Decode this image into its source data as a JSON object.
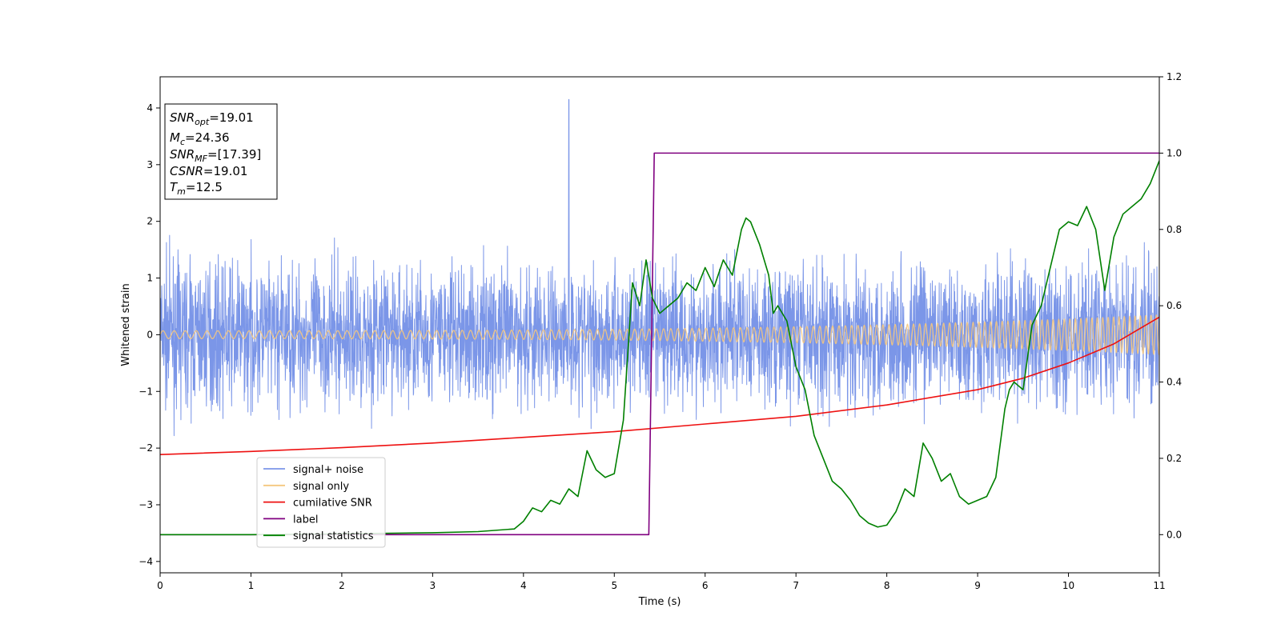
{
  "chart_data": {
    "type": "line",
    "xlabel": "Time (s)",
    "ylabel": "Whitened strain",
    "xlim": [
      0,
      11
    ],
    "ylim": [
      -4.2,
      4.55
    ],
    "y2lim": [
      -0.1,
      1.2
    ],
    "x_ticks": [
      0,
      1,
      2,
      3,
      4,
      5,
      6,
      7,
      8,
      9,
      10,
      11
    ],
    "x_tick_labels": [
      "0",
      "1",
      "2",
      "3",
      "4",
      "5",
      "6",
      "7",
      "8",
      "9",
      "10",
      "11"
    ],
    "y_ticks": [
      -4,
      -3,
      -2,
      -1,
      0,
      1,
      2,
      3,
      4
    ],
    "y_tick_labels": [
      "−4",
      "−3",
      "−2",
      "−1",
      "0",
      "1",
      "2",
      "3",
      "4"
    ],
    "y2_ticks": [
      0.0,
      0.2,
      0.4,
      0.6,
      0.8,
      1.0,
      1.2
    ],
    "y2_tick_labels": [
      "0.0",
      "0.2",
      "0.4",
      "0.6",
      "0.8",
      "1.0",
      "1.2"
    ],
    "grid": false,
    "legend_position": "lower-left",
    "annotation": {
      "lines": [
        {
          "sym": "SNR",
          "sub": "opt",
          "val": "=19.01"
        },
        {
          "sym": "M",
          "sub": "c",
          "val": "=24.36"
        },
        {
          "sym": "SNR",
          "sub": "MF",
          "val": "=[17.39]"
        },
        {
          "sym": "CSNR",
          "sub": "",
          "val": "=19.01"
        },
        {
          "sym": "T",
          "sub": "m",
          "val": "=12.5"
        }
      ]
    },
    "series": [
      {
        "name": "signal+ noise",
        "axis": "left",
        "color": "#7b96e8",
        "kind": "noise",
        "description_values": {
          "rms": 0.85,
          "min": -3.3,
          "max": 4.15,
          "spike_x": 4.5,
          "spike_y": 4.15
        }
      },
      {
        "name": "signal only",
        "axis": "left",
        "color": "#f5c77e",
        "kind": "chirp",
        "amplitude_start": 0.07,
        "amplitude_end": 0.35
      },
      {
        "name": "cumilative SNR",
        "axis": "right",
        "color": "#ee1111",
        "x": [
          0,
          1,
          2,
          3,
          4,
          5,
          6,
          7,
          8,
          9,
          9.5,
          10,
          10.5,
          11
        ],
        "y": [
          0.21,
          0.218,
          0.228,
          0.24,
          0.255,
          0.27,
          0.29,
          0.31,
          0.34,
          0.38,
          0.41,
          0.45,
          0.5,
          0.57
        ]
      },
      {
        "name": "label",
        "axis": "right",
        "color": "#800080",
        "x": [
          0,
          5.38,
          5.44,
          11
        ],
        "y": [
          0,
          0,
          1,
          1
        ]
      },
      {
        "name": "signal statistics",
        "axis": "right",
        "color": "#008000",
        "x": [
          0,
          1,
          2,
          3,
          3.5,
          3.9,
          4.0,
          4.1,
          4.2,
          4.3,
          4.4,
          4.5,
          4.6,
          4.7,
          4.8,
          4.9,
          5.0,
          5.1,
          5.2,
          5.28,
          5.35,
          5.42,
          5.5,
          5.6,
          5.7,
          5.8,
          5.9,
          6.0,
          6.1,
          6.2,
          6.3,
          6.4,
          6.45,
          6.5,
          6.6,
          6.7,
          6.75,
          6.8,
          6.9,
          7.0,
          7.1,
          7.2,
          7.3,
          7.4,
          7.5,
          7.6,
          7.7,
          7.8,
          7.9,
          8.0,
          8.1,
          8.2,
          8.3,
          8.4,
          8.5,
          8.6,
          8.7,
          8.8,
          8.9,
          9.0,
          9.1,
          9.2,
          9.3,
          9.35,
          9.4,
          9.5,
          9.6,
          9.7,
          9.8,
          9.9,
          10.0,
          10.1,
          10.2,
          10.3,
          10.4,
          10.5,
          10.6,
          10.7,
          10.8,
          10.9,
          11.0
        ],
        "y": [
          0,
          0,
          0.002,
          0.005,
          0.008,
          0.015,
          0.035,
          0.07,
          0.06,
          0.09,
          0.08,
          0.12,
          0.1,
          0.22,
          0.17,
          0.15,
          0.16,
          0.3,
          0.66,
          0.6,
          0.72,
          0.62,
          0.58,
          0.6,
          0.62,
          0.66,
          0.64,
          0.7,
          0.65,
          0.72,
          0.68,
          0.8,
          0.83,
          0.82,
          0.76,
          0.68,
          0.58,
          0.6,
          0.56,
          0.44,
          0.38,
          0.26,
          0.2,
          0.14,
          0.12,
          0.09,
          0.05,
          0.03,
          0.02,
          0.025,
          0.06,
          0.12,
          0.1,
          0.24,
          0.2,
          0.14,
          0.16,
          0.1,
          0.08,
          0.09,
          0.1,
          0.15,
          0.33,
          0.38,
          0.4,
          0.38,
          0.55,
          0.6,
          0.7,
          0.8,
          0.82,
          0.81,
          0.86,
          0.8,
          0.64,
          0.78,
          0.84,
          0.86,
          0.88,
          0.92,
          0.98
        ]
      }
    ]
  }
}
